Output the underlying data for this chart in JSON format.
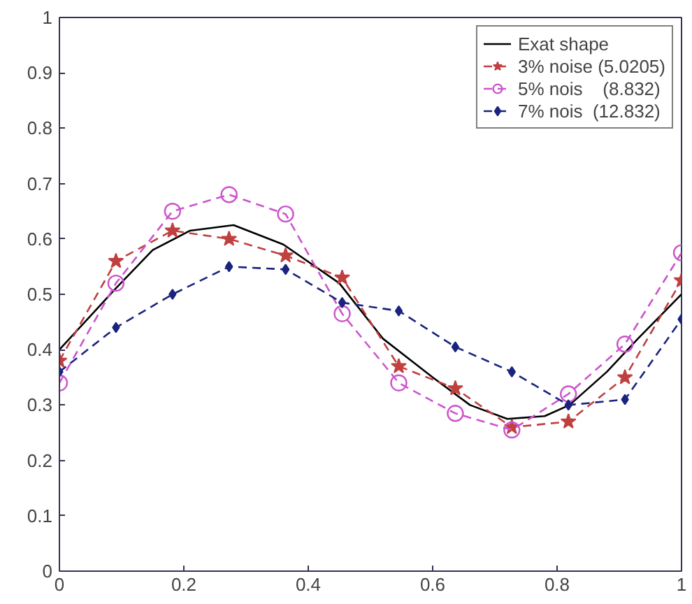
{
  "chart_data": {
    "type": "line",
    "xlim": [
      0,
      1
    ],
    "ylim": [
      0,
      1
    ],
    "xticks": [
      0,
      0.2,
      0.4,
      0.6,
      0.8,
      1
    ],
    "yticks": [
      0,
      0.1,
      0.2,
      0.3,
      0.4,
      0.5,
      0.6,
      0.7,
      0.8,
      0.9,
      1
    ],
    "grid": false,
    "legend": "top right",
    "series": [
      {
        "name": "Exat shape",
        "color": "#000000",
        "line_style": "solid",
        "marker": "none",
        "x": [
          0,
          0.09,
          0.15,
          0.21,
          0.28,
          0.36,
          0.45,
          0.52,
          0.6,
          0.66,
          0.72,
          0.78,
          0.82,
          0.88,
          0.93,
          1
        ],
        "values": [
          0.4,
          0.51,
          0.58,
          0.615,
          0.625,
          0.59,
          0.52,
          0.42,
          0.35,
          0.3,
          0.275,
          0.28,
          0.3,
          0.36,
          0.42,
          0.5
        ]
      },
      {
        "name": "3% noise (5.0205)",
        "color": "#c04040",
        "line_style": "dashed",
        "marker": "star",
        "x": [
          0,
          0.0909,
          0.1818,
          0.2727,
          0.3636,
          0.4545,
          0.5455,
          0.6364,
          0.7273,
          0.8182,
          0.9091,
          1
        ],
        "values": [
          0.38,
          0.56,
          0.615,
          0.6,
          0.57,
          0.53,
          0.37,
          0.33,
          0.26,
          0.27,
          0.35,
          0.525
        ]
      },
      {
        "name": "5% nois    (8.832)",
        "color": "#cc55cc",
        "line_style": "dashed",
        "marker": "circle",
        "x": [
          0,
          0.0909,
          0.1818,
          0.2727,
          0.3636,
          0.4545,
          0.5455,
          0.6364,
          0.7273,
          0.8182,
          0.9091,
          1
        ],
        "values": [
          0.34,
          0.52,
          0.65,
          0.68,
          0.645,
          0.465,
          0.34,
          0.285,
          0.255,
          0.32,
          0.41,
          0.575
        ]
      },
      {
        "name": "7% nois  (12.832)",
        "color": "#1a237e",
        "line_style": "dashed",
        "marker": "diamond",
        "x": [
          0,
          0.0909,
          0.1818,
          0.2727,
          0.3636,
          0.4545,
          0.5455,
          0.6364,
          0.7273,
          0.8182,
          0.9091,
          1
        ],
        "values": [
          0.36,
          0.44,
          0.5,
          0.55,
          0.545,
          0.485,
          0.47,
          0.405,
          0.36,
          0.3,
          0.31,
          0.455
        ]
      }
    ]
  }
}
